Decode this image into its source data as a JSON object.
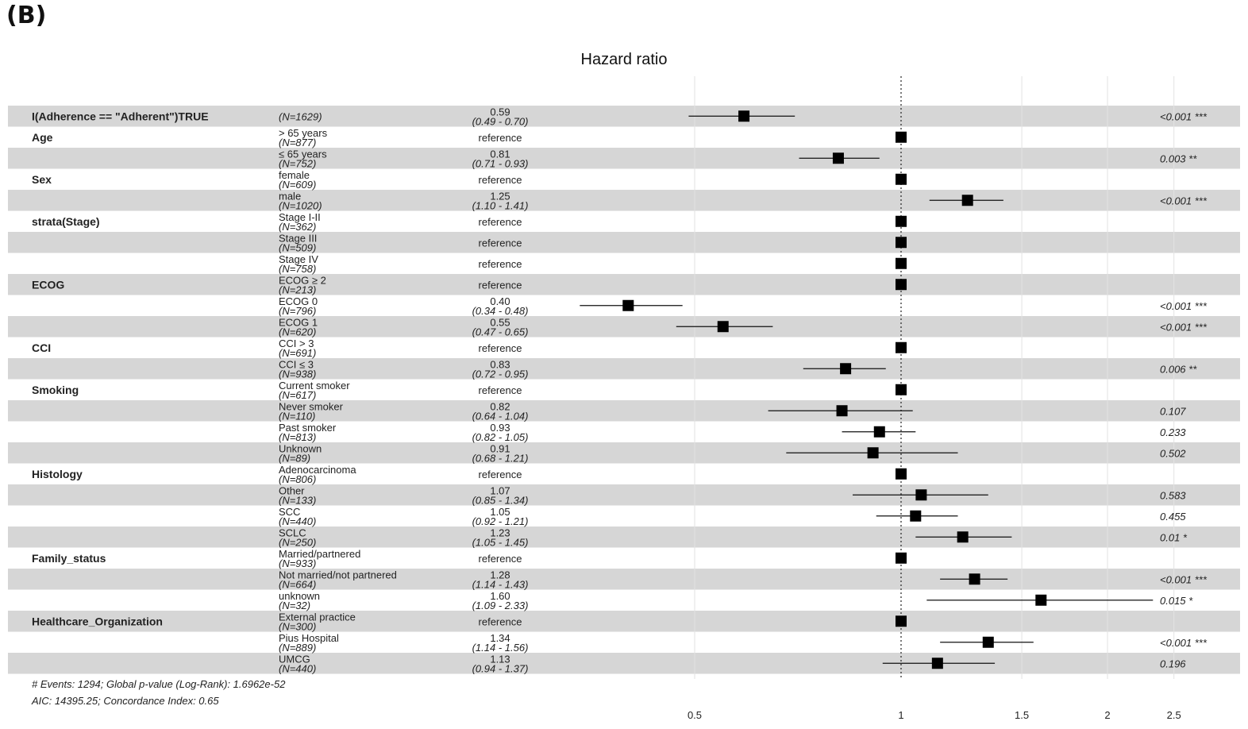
{
  "panel_label": "(B)",
  "title": "Hazard ratio",
  "footer": {
    "line1": "# Events: 1294; Global p-value (Log-Rank): 1.6962e-52",
    "line2": "AIC: 14395.25; Concordance Index: 0.65"
  },
  "chart_data": {
    "type": "forest",
    "title": "Hazard ratio",
    "x_scale": "log",
    "xlim": [
      0.37,
      3.0
    ],
    "x_ticks": [
      0.5,
      1,
      1.5,
      2,
      2.5
    ],
    "x_tick_labels": [
      "0.5",
      "1",
      "1.5",
      "2",
      "2.5"
    ],
    "reference_line": 1,
    "grid": true,
    "rows": [
      {
        "variable": "I(Adherence == \"Adherent\")TRUE",
        "level": "",
        "n": "(N=1629)",
        "hr": 0.59,
        "hr_label": "0.59",
        "ci": "(0.49 - 0.70)",
        "lo": 0.49,
        "hi": 0.7,
        "p": "<0.001 ***"
      },
      {
        "variable": "Age",
        "level": "> 65 years",
        "n": "(N=877)",
        "hr": 1,
        "hr_label": "reference",
        "ci": "",
        "lo": null,
        "hi": null,
        "p": ""
      },
      {
        "variable": "",
        "level": "≤ 65 years",
        "n": "(N=752)",
        "hr": 0.81,
        "hr_label": "0.81",
        "ci": "(0.71 - 0.93)",
        "lo": 0.71,
        "hi": 0.93,
        "p": "0.003 **"
      },
      {
        "variable": "Sex",
        "level": "female",
        "n": "(N=609)",
        "hr": 1,
        "hr_label": "reference",
        "ci": "",
        "lo": null,
        "hi": null,
        "p": ""
      },
      {
        "variable": "",
        "level": "male",
        "n": "(N=1020)",
        "hr": 1.25,
        "hr_label": "1.25",
        "ci": "(1.10 - 1.41)",
        "lo": 1.1,
        "hi": 1.41,
        "p": "<0.001 ***"
      },
      {
        "variable": "strata(Stage)",
        "level": "Stage I-II",
        "n": "(N=362)",
        "hr": 1,
        "hr_label": "reference",
        "ci": "",
        "lo": null,
        "hi": null,
        "p": ""
      },
      {
        "variable": "",
        "level": "Stage III",
        "n": "(N=509)",
        "hr": 1,
        "hr_label": "reference",
        "ci": "",
        "lo": null,
        "hi": null,
        "p": ""
      },
      {
        "variable": "",
        "level": "Stage IV",
        "n": "(N=758)",
        "hr": 1,
        "hr_label": "reference",
        "ci": "",
        "lo": null,
        "hi": null,
        "p": ""
      },
      {
        "variable": "ECOG",
        "level": "ECOG ≥ 2",
        "n": "(N=213)",
        "hr": 1,
        "hr_label": "reference",
        "ci": "",
        "lo": null,
        "hi": null,
        "p": ""
      },
      {
        "variable": "",
        "level": "ECOG 0",
        "n": "(N=796)",
        "hr": 0.4,
        "hr_label": "0.40",
        "ci": "(0.34 - 0.48)",
        "lo": 0.34,
        "hi": 0.48,
        "p": "<0.001 ***"
      },
      {
        "variable": "",
        "level": "ECOG 1",
        "n": "(N=620)",
        "hr": 0.55,
        "hr_label": "0.55",
        "ci": "(0.47 - 0.65)",
        "lo": 0.47,
        "hi": 0.65,
        "p": "<0.001 ***"
      },
      {
        "variable": "CCI",
        "level": "CCI > 3",
        "n": "(N=691)",
        "hr": 1,
        "hr_label": "reference",
        "ci": "",
        "lo": null,
        "hi": null,
        "p": ""
      },
      {
        "variable": "",
        "level": "CCI ≤ 3",
        "n": "(N=938)",
        "hr": 0.83,
        "hr_label": "0.83",
        "ci": "(0.72 - 0.95)",
        "lo": 0.72,
        "hi": 0.95,
        "p": "0.006 **"
      },
      {
        "variable": "Smoking",
        "level": "Current smoker",
        "n": "(N=617)",
        "hr": 1,
        "hr_label": "reference",
        "ci": "",
        "lo": null,
        "hi": null,
        "p": ""
      },
      {
        "variable": "",
        "level": "Never smoker",
        "n": "(N=110)",
        "hr": 0.82,
        "hr_label": "0.82",
        "ci": "(0.64 - 1.04)",
        "lo": 0.64,
        "hi": 1.04,
        "p": "0.107"
      },
      {
        "variable": "",
        "level": "Past smoker",
        "n": "(N=813)",
        "hr": 0.93,
        "hr_label": "0.93",
        "ci": "(0.82 - 1.05)",
        "lo": 0.82,
        "hi": 1.05,
        "p": "0.233"
      },
      {
        "variable": "",
        "level": "Unknown",
        "n": "(N=89)",
        "hr": 0.91,
        "hr_label": "0.91",
        "ci": "(0.68 - 1.21)",
        "lo": 0.68,
        "hi": 1.21,
        "p": "0.502"
      },
      {
        "variable": "Histology",
        "level": "Adenocarcinoma",
        "n": "(N=806)",
        "hr": 1,
        "hr_label": "reference",
        "ci": "",
        "lo": null,
        "hi": null,
        "p": ""
      },
      {
        "variable": "",
        "level": "Other",
        "n": "(N=133)",
        "hr": 1.07,
        "hr_label": "1.07",
        "ci": "(0.85 - 1.34)",
        "lo": 0.85,
        "hi": 1.34,
        "p": "0.583"
      },
      {
        "variable": "",
        "level": "SCC",
        "n": "(N=440)",
        "hr": 1.05,
        "hr_label": "1.05",
        "ci": "(0.92 - 1.21)",
        "lo": 0.92,
        "hi": 1.21,
        "p": "0.455"
      },
      {
        "variable": "",
        "level": "SCLC",
        "n": "(N=250)",
        "hr": 1.23,
        "hr_label": "1.23",
        "ci": "(1.05 - 1.45)",
        "lo": 1.05,
        "hi": 1.45,
        "p": "0.01 *"
      },
      {
        "variable": "Family_status",
        "level": "Married/partnered",
        "n": "(N=933)",
        "hr": 1,
        "hr_label": "reference",
        "ci": "",
        "lo": null,
        "hi": null,
        "p": ""
      },
      {
        "variable": "",
        "level": "Not married/not partnered",
        "n": "(N=664)",
        "hr": 1.28,
        "hr_label": "1.28",
        "ci": "(1.14 - 1.43)",
        "lo": 1.14,
        "hi": 1.43,
        "p": "<0.001 ***"
      },
      {
        "variable": "",
        "level": "unknown",
        "n": "(N=32)",
        "hr": 1.6,
        "hr_label": "1.60",
        "ci": "(1.09 - 2.33)",
        "lo": 1.09,
        "hi": 2.33,
        "p": "0.015 *"
      },
      {
        "variable": "Healthcare_Organization",
        "level": "External practice",
        "n": "(N=300)",
        "hr": 1,
        "hr_label": "reference",
        "ci": "",
        "lo": null,
        "hi": null,
        "p": ""
      },
      {
        "variable": "",
        "level": "Pius Hospital",
        "n": "(N=889)",
        "hr": 1.34,
        "hr_label": "1.34",
        "ci": "(1.14 - 1.56)",
        "lo": 1.14,
        "hi": 1.56,
        "p": "<0.001 ***"
      },
      {
        "variable": "",
        "level": "UMCG",
        "n": "(N=440)",
        "hr": 1.13,
        "hr_label": "1.13",
        "ci": "(0.94 - 1.37)",
        "lo": 0.94,
        "hi": 1.37,
        "p": "0.196"
      }
    ]
  }
}
